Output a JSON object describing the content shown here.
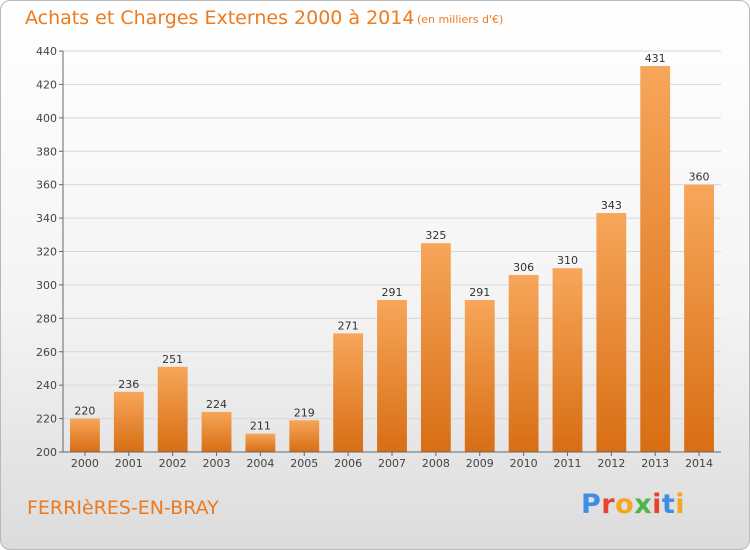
{
  "header": {
    "title": "Achats et Charges Externes 2000 à 2014",
    "subtitle": "(en milliers d'€)"
  },
  "footer": {
    "commune": "FERRIèRES-EN-BRAY",
    "logo_text": "Proxiti",
    "logo_colors": [
      "#3e8ee6",
      "#e8432f",
      "#f2a623",
      "#4fb548",
      "#e8432f",
      "#3e8ee6",
      "#f2a623"
    ]
  },
  "colors": {
    "bar_top": "#f7a65a",
    "bar_bottom": "#d86e14",
    "accent": "#ec7a1e"
  },
  "chart_data": {
    "type": "bar",
    "title": "Achats et Charges Externes 2000 à 2014",
    "subtitle": "(en milliers d'€)",
    "xlabel": "",
    "ylabel": "",
    "categories": [
      "2000",
      "2001",
      "2002",
      "2003",
      "2004",
      "2005",
      "2006",
      "2007",
      "2008",
      "2009",
      "2010",
      "2011",
      "2012",
      "2013",
      "2014"
    ],
    "values": [
      220,
      236,
      251,
      224,
      211,
      219,
      271,
      291,
      325,
      291,
      306,
      310,
      343,
      431,
      360
    ],
    "ylim": [
      200,
      440
    ],
    "yticks": [
      200,
      220,
      240,
      260,
      280,
      300,
      320,
      340,
      360,
      380,
      400,
      420,
      440
    ],
    "grid": true,
    "legend": "none"
  }
}
